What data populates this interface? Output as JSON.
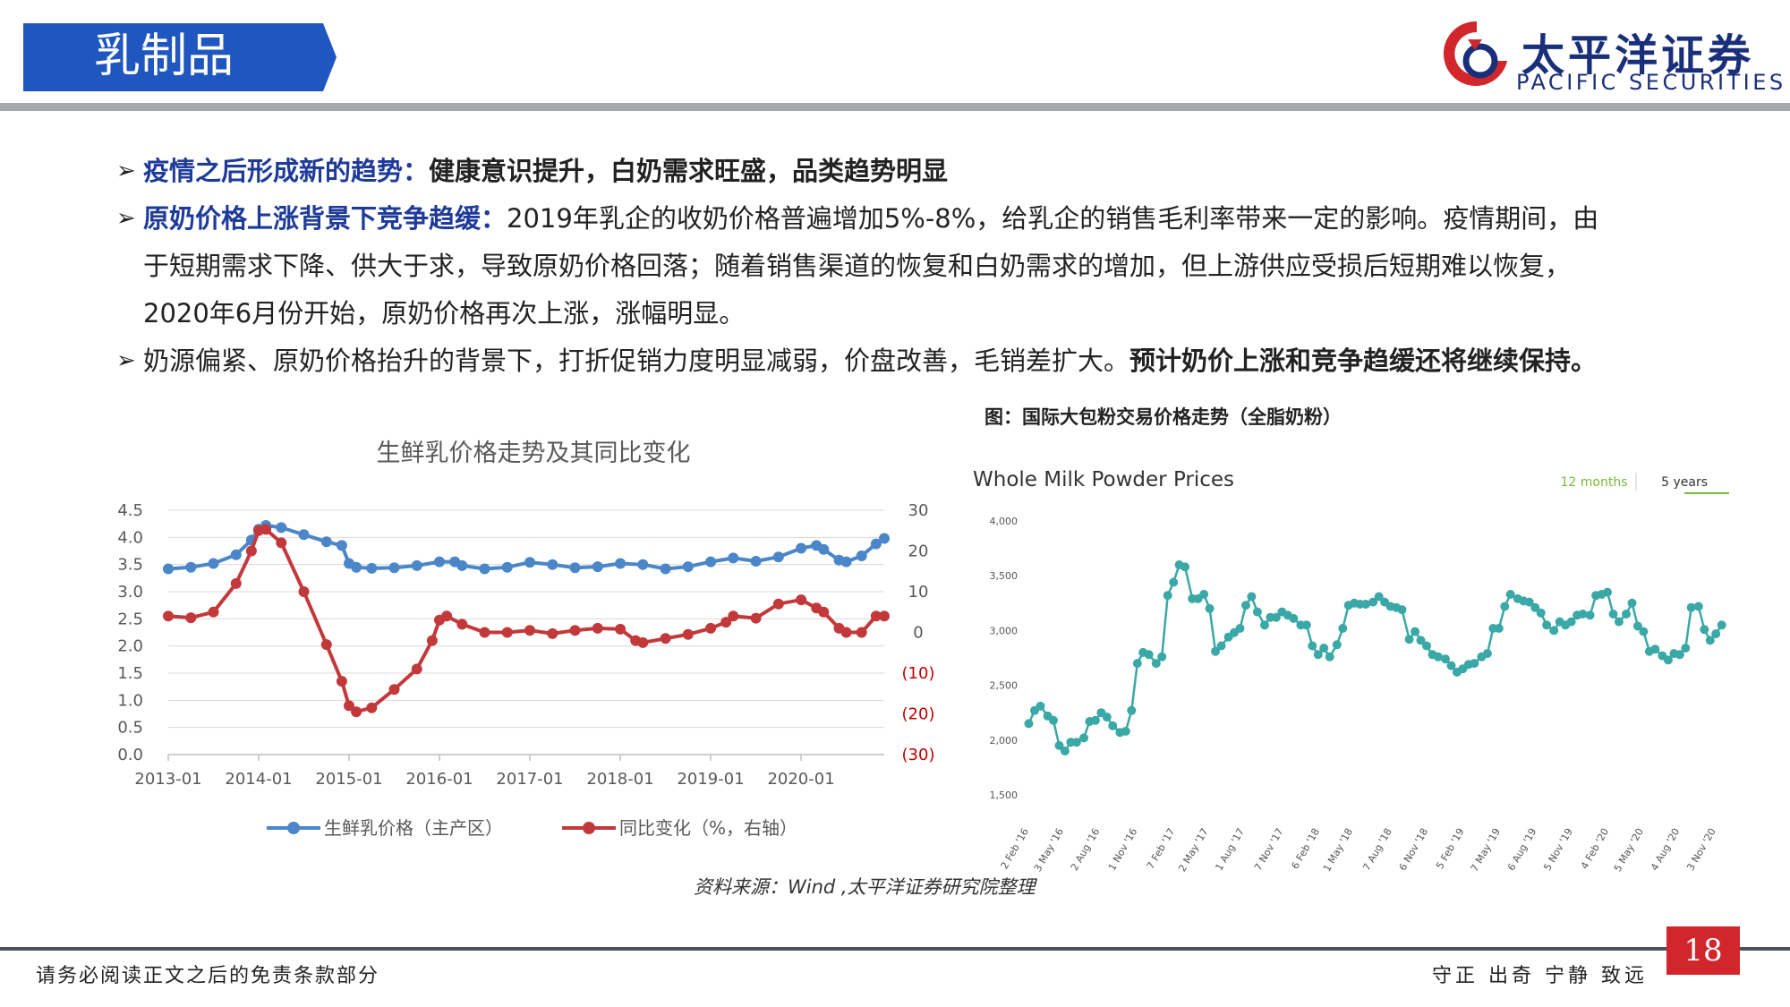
{
  "header": {
    "title": "乳制品"
  },
  "logo": {
    "cn": "太平洋证券",
    "en": "PACIFIC SECURITIES",
    "colors": {
      "red": "#d1262c",
      "navy": "#1a2f7a"
    }
  },
  "bullets": [
    {
      "head": "疫情之后形成新的趋势：",
      "body": "",
      "bold_tail": "健康意识提升，白奶需求旺盛，品类趋势明显"
    },
    {
      "head": "原奶价格上涨背景下竞争趋缓：",
      "body": "2019年乳企的收奶价格普遍增加5%-8%，给乳企的销售毛利率带来一定的影响。疫情期间，由"
    },
    {
      "cont": "于短期需求下降、供大于求，导致原奶价格回落；随着销售渠道的恢复和白奶需求的增加，但上游供应受损后短期难以恢复，"
    },
    {
      "cont": "2020年6月份开始，原奶价格再次上涨，涨幅明显。"
    },
    {
      "head": "",
      "body": "奶源偏紧、原奶价格抬升的背景下，打折促销力度明显减弱，价盘改善，毛销差扩大。",
      "bold_tail": "预计奶价上涨和竞争趋缓还将继续保持。"
    }
  ],
  "caption": "图：国际大包粉交易价格走势（全脂奶粉）",
  "source": "资料来源：Wind ,太平洋证券研究院整理",
  "footer": {
    "left": "请务必阅读正文之后的免责条款部分",
    "right": "守正 出奇 宁静 致远",
    "page": "18"
  },
  "chart_data": [
    {
      "type": "line",
      "title": "生鲜乳价格走势及其同比变化",
      "x_ticks": [
        "2013-01",
        "2014-01",
        "2015-01",
        "2016-01",
        "2017-01",
        "2018-01",
        "2019-01",
        "2020-01"
      ],
      "x_range": [
        2013.0,
        2020.92
      ],
      "y_left_ticks": [
        "4.5",
        "4.0",
        "3.5",
        "3.0",
        "2.5",
        "2.0",
        "1.5",
        "1.0",
        "0.5",
        "0.0"
      ],
      "y_left_range": [
        0,
        4.5
      ],
      "y_right_ticks": [
        "30",
        "20",
        "10",
        "0",
        "(10)",
        "(20)",
        "(30)"
      ],
      "y_right_range": [
        -30,
        30
      ],
      "grid": true,
      "legend_position": "bottom",
      "series": [
        {
          "name": "生鲜乳价格（主产区）",
          "axis": "left",
          "color": "#4a86c8",
          "x": [
            2013.0,
            2013.25,
            2013.5,
            2013.75,
            2013.92,
            2014.0,
            2014.08,
            2014.25,
            2014.5,
            2014.75,
            2014.92,
            2015.0,
            2015.08,
            2015.25,
            2015.5,
            2015.75,
            2016.0,
            2016.17,
            2016.25,
            2016.5,
            2016.75,
            2017.0,
            2017.25,
            2017.5,
            2017.75,
            2018.0,
            2018.25,
            2018.5,
            2018.75,
            2019.0,
            2019.25,
            2019.5,
            2019.75,
            2020.0,
            2020.17,
            2020.25,
            2020.42,
            2020.5,
            2020.67,
            2020.83,
            2020.92
          ],
          "y": [
            3.42,
            3.45,
            3.52,
            3.68,
            3.95,
            4.15,
            4.22,
            4.18,
            4.05,
            3.92,
            3.85,
            3.52,
            3.45,
            3.43,
            3.44,
            3.48,
            3.55,
            3.55,
            3.48,
            3.42,
            3.45,
            3.54,
            3.5,
            3.44,
            3.46,
            3.52,
            3.5,
            3.42,
            3.46,
            3.55,
            3.62,
            3.56,
            3.64,
            3.8,
            3.85,
            3.78,
            3.58,
            3.55,
            3.66,
            3.88,
            3.98
          ]
        },
        {
          "name": "同比变化（%，右轴）",
          "axis": "right",
          "color": "#c3393b",
          "x": [
            2013.0,
            2013.25,
            2013.5,
            2013.75,
            2013.92,
            2014.0,
            2014.08,
            2014.25,
            2014.5,
            2014.75,
            2014.92,
            2015.0,
            2015.08,
            2015.25,
            2015.5,
            2015.75,
            2015.92,
            2016.0,
            2016.08,
            2016.25,
            2016.5,
            2016.75,
            2017.0,
            2017.25,
            2017.5,
            2017.75,
            2018.0,
            2018.17,
            2018.25,
            2018.5,
            2018.75,
            2019.0,
            2019.17,
            2019.25,
            2019.5,
            2019.75,
            2020.0,
            2020.17,
            2020.25,
            2020.42,
            2020.5,
            2020.67,
            2020.83,
            2020.92
          ],
          "y": [
            4.0,
            3.6,
            5.0,
            12.0,
            20.0,
            25.0,
            25.3,
            22.0,
            10.0,
            -3.0,
            -12.0,
            -18.0,
            -19.5,
            -18.5,
            -14.0,
            -9.0,
            -2.0,
            3.0,
            4.0,
            2.0,
            0.0,
            0.0,
            0.5,
            -0.3,
            0.5,
            1.0,
            0.8,
            -2.0,
            -2.5,
            -1.5,
            -0.5,
            1.0,
            2.5,
            4.0,
            3.5,
            7.0,
            8.0,
            6.0,
            5.0,
            1.0,
            0.0,
            0.0,
            4.0,
            4.0
          ]
        }
      ]
    },
    {
      "type": "line",
      "title": "Whole Milk Powder Prices",
      "toggle": {
        "options": [
          "12 months",
          "5 years"
        ],
        "selected": "5 years",
        "accent": "#7ab93b"
      },
      "y_ticks": [
        "4,000",
        "3,500",
        "3,000",
        "2,500",
        "2,000",
        "1,500"
      ],
      "y_range": [
        1500,
        4000
      ],
      "x_ticks": [
        "2 Feb '16",
        "3 May '16",
        "2 Aug '16",
        "1 Nov '16",
        "7 Feb '17",
        "2 May '17",
        "1 Aug '17",
        "7 Nov '17",
        "6 Feb '18",
        "1 May '18",
        "7 Aug '18",
        "6 Nov '18",
        "5 Feb '19",
        "7 May '19",
        "6 Aug '19",
        "5 Nov '19",
        "4 Feb '20",
        "5 May '20",
        "4 Aug '20",
        "3 Nov '20"
      ],
      "x_tick_positions": [
        2016.09,
        2016.33,
        2016.58,
        2016.84,
        2017.1,
        2017.33,
        2017.58,
        2017.85,
        2018.1,
        2018.33,
        2018.6,
        2018.85,
        2019.1,
        2019.35,
        2019.6,
        2019.85,
        2020.1,
        2020.34,
        2020.59,
        2020.84
      ],
      "x_range": [
        2016.0,
        2020.95
      ],
      "grid": false,
      "series": [
        {
          "name": "Whole Milk Powder",
          "color": "#3aa8a6",
          "x": [
            2016.09,
            2016.13,
            2016.17,
            2016.22,
            2016.26,
            2016.3,
            2016.34,
            2016.38,
            2016.42,
            2016.47,
            2016.51,
            2016.55,
            2016.59,
            2016.63,
            2016.67,
            2016.72,
            2016.76,
            2016.8,
            2016.84,
            2016.88,
            2016.92,
            2016.97,
            2017.01,
            2017.05,
            2017.09,
            2017.13,
            2017.17,
            2017.22,
            2017.26,
            2017.3,
            2017.34,
            2017.38,
            2017.42,
            2017.47,
            2017.51,
            2017.55,
            2017.59,
            2017.63,
            2017.67,
            2017.72,
            2017.76,
            2017.8,
            2017.84,
            2017.88,
            2017.92,
            2017.97,
            2018.01,
            2018.05,
            2018.09,
            2018.13,
            2018.17,
            2018.22,
            2018.26,
            2018.3,
            2018.34,
            2018.38,
            2018.42,
            2018.47,
            2018.51,
            2018.55,
            2018.59,
            2018.63,
            2018.67,
            2018.72,
            2018.76,
            2018.8,
            2018.84,
            2018.88,
            2018.92,
            2018.97,
            2019.01,
            2019.05,
            2019.09,
            2019.13,
            2019.17,
            2019.22,
            2019.26,
            2019.3,
            2019.34,
            2019.38,
            2019.42,
            2019.47,
            2019.51,
            2019.55,
            2019.59,
            2019.63,
            2019.67,
            2019.72,
            2019.76,
            2019.8,
            2019.84,
            2019.88,
            2019.92,
            2019.97,
            2020.01,
            2020.05,
            2020.09,
            2020.13,
            2020.17,
            2020.22,
            2020.26,
            2020.3,
            2020.34,
            2020.38,
            2020.42,
            2020.47,
            2020.51,
            2020.55,
            2020.59,
            2020.63,
            2020.67,
            2020.72,
            2020.76,
            2020.8,
            2020.84,
            2020.88
          ],
          "y": [
            2150,
            2270,
            2310,
            2220,
            2180,
            1950,
            1900,
            1980,
            1980,
            2020,
            2170,
            2180,
            2250,
            2210,
            2130,
            2070,
            2080,
            2270,
            2700,
            2800,
            2780,
            2700,
            2760,
            3320,
            3440,
            3600,
            3580,
            3290,
            3290,
            3330,
            3200,
            2810,
            2860,
            2940,
            2980,
            3020,
            3230,
            3310,
            3170,
            3050,
            3120,
            3120,
            3170,
            3140,
            3110,
            3050,
            3050,
            2860,
            2780,
            2840,
            2760,
            2870,
            3020,
            3230,
            3250,
            3240,
            3240,
            3260,
            3310,
            3260,
            3220,
            3210,
            3190,
            2920,
            2990,
            2910,
            2860,
            2780,
            2760,
            2740,
            2680,
            2620,
            2650,
            2690,
            2700,
            2760,
            2790,
            3020,
            3020,
            3220,
            3330,
            3290,
            3270,
            3260,
            3210,
            3160,
            3050,
            3000,
            3080,
            3050,
            3080,
            3140,
            3150,
            3140,
            3320,
            3330,
            3350,
            3150,
            3080,
            3150,
            3250,
            3040,
            2990,
            2810,
            2830,
            2770,
            2730,
            2790,
            2780,
            2840,
            3210,
            3220,
            3010,
            2910,
            2970,
            3050
          ]
        }
      ]
    }
  ]
}
